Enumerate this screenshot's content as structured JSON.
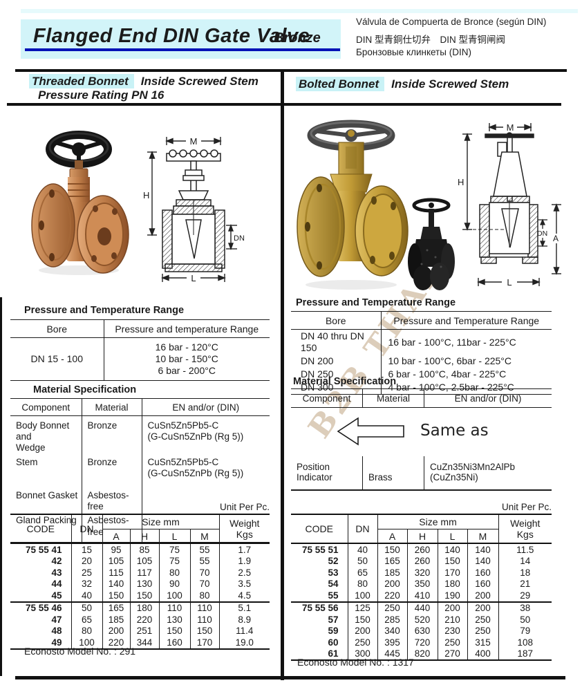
{
  "header": {
    "title": "Flanged End DIN Gate Valve",
    "material": "Bronze",
    "translation_es": "Válvula de Compuerta de Bronce (según DIN)",
    "translation_cjk": "DIN 型青銅仕切弁　DIN 型青铜闸阀",
    "translation_ru": "Бронзовые клинкеты (DIN)"
  },
  "watermark": "B2B THAI",
  "left": {
    "bonnet_type": "Threaded Bonnet",
    "stem_type": "Inside Screwed Stem",
    "pressure_rating": "Pressure Rating PN 16",
    "pt_title": "Pressure and Temperature Range",
    "pt_col_bore": "Bore",
    "pt_col_range": "Pressure and temperature Range",
    "pt_rows": [
      [
        "DN 15 - 100",
        "16 bar - 120°C\n10 bar - 150°C\n6 bar - 200°C"
      ]
    ],
    "mat_title": "Material Specification",
    "mat_col_component": "Component",
    "mat_col_material": "Material",
    "mat_col_en": "EN and/or (DIN)",
    "mat_rows": [
      [
        "Body Bonnet and\nWedge",
        "Bronze",
        "CuSn5Zn5Pb5-C\n(G-CuSn5ZnPb (Rg 5))"
      ],
      [
        "Stem",
        "Bronze",
        "CuSn5Zn5Pb5-C\n(G-CuSn5ZnPb (Rg 5))"
      ],
      [
        "Bonnet Gasket",
        "Asbestos-free",
        ""
      ],
      [
        "Gland Packing",
        "Asbestos-free",
        ""
      ]
    ],
    "unit_note": "Unit Per Pc.",
    "dim": {
      "code": "CODE",
      "dn": "DN",
      "size": "Size mm",
      "a": "A",
      "h": "H",
      "l": "L",
      "m": "M",
      "weight": "Weight",
      "kgs": "Kgs"
    },
    "dim_groups": {
      "g1": [
        [
          "75 55 41",
          "15",
          "95",
          "85",
          "75",
          "55",
          "1.7"
        ],
        [
          "42",
          "20",
          "105",
          "105",
          "75",
          "55",
          "1.9"
        ],
        [
          "43",
          "25",
          "115",
          "117",
          "80",
          "70",
          "2.5"
        ],
        [
          "44",
          "32",
          "140",
          "130",
          "90",
          "70",
          "3.5"
        ],
        [
          "45",
          "40",
          "150",
          "150",
          "100",
          "80",
          "4.5"
        ]
      ],
      "g2": [
        [
          "75 55 46",
          "50",
          "165",
          "180",
          "110",
          "110",
          "5.1"
        ],
        [
          "47",
          "65",
          "185",
          "220",
          "130",
          "110",
          "8.9"
        ],
        [
          "48",
          "80",
          "200",
          "251",
          "150",
          "150",
          "11.4"
        ],
        [
          "49",
          "100",
          "220",
          "344",
          "160",
          "170",
          "19.0"
        ]
      ]
    },
    "model_note": "Econosto Model No. : 291",
    "drawing": {
      "m": "M",
      "h": "H",
      "dn": "DN",
      "l": "L"
    }
  },
  "right": {
    "bonnet_type": "Bolted Bonnet",
    "stem_type": "Inside Screwed Stem",
    "pt_title": "Pressure and Temperature Range",
    "pt_col_bore": "Bore",
    "pt_col_range": "Pressure and Temperature Range",
    "pt_rows": [
      [
        "DN 40 thru DN 150",
        "16 bar - 100°C, 11bar - 225°C"
      ],
      [
        "DN 200",
        "10 bar - 100°C, 6bar - 225°C"
      ],
      [
        "DN 250",
        "6 bar - 100°C, 4bar - 225°C"
      ],
      [
        "DN 300",
        "4 bar - 100°C, 2.5bar - 225°C"
      ]
    ],
    "mat_title": "Material Specification",
    "mat_col_component": "Component",
    "mat_col_material": "Material",
    "mat_col_en": "EN and/or (DIN)",
    "same_as": "Same as",
    "mat_row_component": "Position Indicator",
    "mat_row_material": "Brass",
    "mat_row_en": "CuZn35Ni3Mn2AlPb (CuZn35Ni)",
    "unit_note": "Unit Per Pc.",
    "dim": {
      "code": "CODE",
      "dn": "DN",
      "size": "Size mm",
      "a": "A",
      "h": "H",
      "l": "L",
      "m": "M",
      "weight": "Weight",
      "kgs": "Kgs"
    },
    "dim_groups": {
      "g1": [
        [
          "75 55 51",
          "40",
          "150",
          "260",
          "140",
          "140",
          "11.5"
        ],
        [
          "52",
          "50",
          "165",
          "260",
          "150",
          "140",
          "14"
        ],
        [
          "53",
          "65",
          "185",
          "320",
          "170",
          "160",
          "18"
        ],
        [
          "54",
          "80",
          "200",
          "350",
          "180",
          "160",
          "21"
        ],
        [
          "55",
          "100",
          "220",
          "410",
          "190",
          "200",
          "29"
        ]
      ],
      "g2": [
        [
          "75 55 56",
          "125",
          "250",
          "440",
          "200",
          "200",
          "38"
        ],
        [
          "57",
          "150",
          "285",
          "520",
          "210",
          "250",
          "50"
        ],
        [
          "59",
          "200",
          "340",
          "630",
          "230",
          "250",
          "79"
        ],
        [
          "60",
          "250",
          "395",
          "720",
          "250",
          "315",
          "108"
        ],
        [
          "61",
          "300",
          "445",
          "820",
          "270",
          "400",
          "187"
        ]
      ]
    },
    "model_note": "Econosto Model No. : 1317",
    "drawing": {
      "m": "M",
      "h": "H",
      "dn": "DN",
      "a": "A",
      "l": "L"
    }
  }
}
